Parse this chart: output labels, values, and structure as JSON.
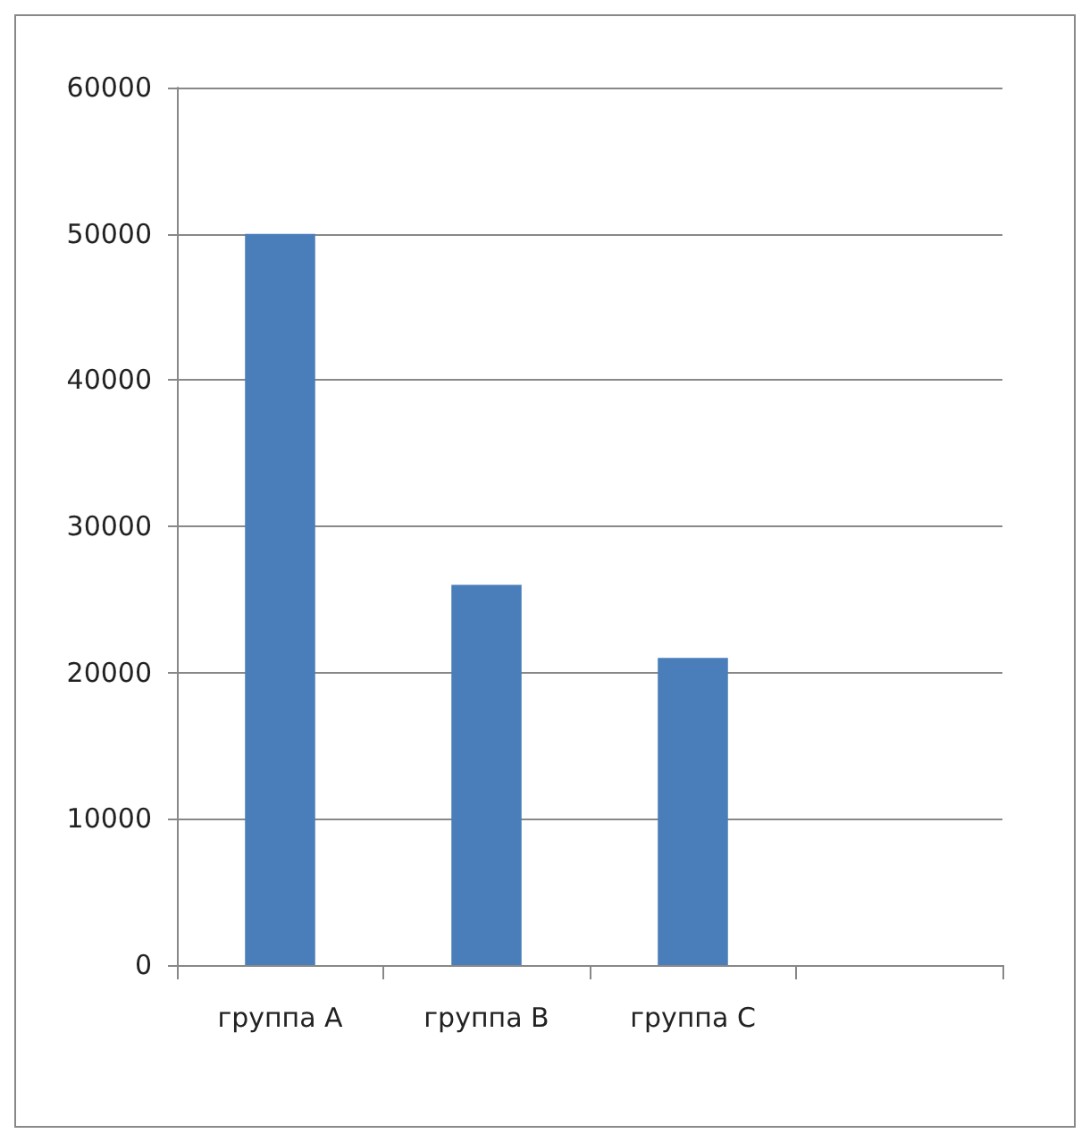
{
  "chart_data": {
    "type": "bar",
    "categories": [
      "группа A",
      "группа B",
      "группа C",
      null
    ],
    "values": [
      50000,
      26000,
      21000,
      null
    ],
    "color": "#4a7ebb",
    "ylim": [
      0,
      60000
    ],
    "yticks": [
      0,
      10000,
      20000,
      30000,
      40000,
      50000,
      60000
    ],
    "grid": "y"
  }
}
